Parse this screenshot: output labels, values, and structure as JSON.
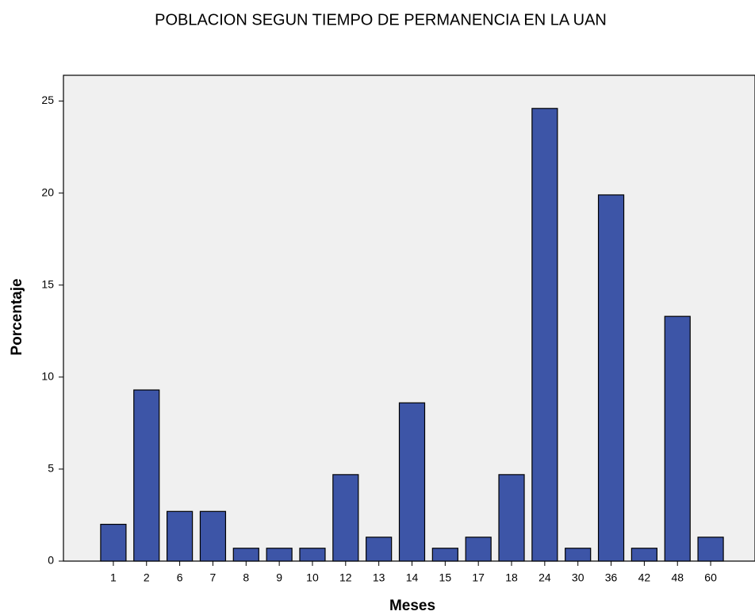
{
  "chart_data": {
    "type": "bar",
    "title": "POBLACION SEGUN TIEMPO DE PERMANENCIA EN LA UAN",
    "x_label": "Meses",
    "y_label": "Porcentaje",
    "categories": [
      "1",
      "2",
      "6",
      "7",
      "8",
      "9",
      "10",
      "12",
      "13",
      "14",
      "15",
      "17",
      "18",
      "24",
      "30",
      "36",
      "42",
      "48",
      "60"
    ],
    "values": [
      2.0,
      9.3,
      2.7,
      2.7,
      0.7,
      0.7,
      0.7,
      4.7,
      1.3,
      8.6,
      0.7,
      1.3,
      4.7,
      24.6,
      0.7,
      19.9,
      0.7,
      13.3,
      1.3
    ],
    "color": "#3d55a7",
    "ylim": [
      0,
      26.4
    ],
    "yticks": [
      0,
      5,
      10,
      15,
      20,
      25
    ],
    "grid": false
  }
}
